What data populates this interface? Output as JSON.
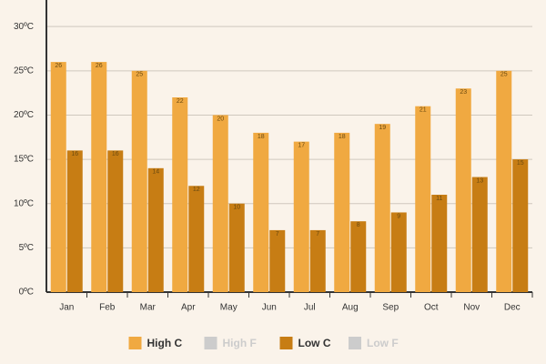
{
  "chart_data": {
    "type": "bar",
    "categories": [
      "Jan",
      "Feb",
      "Mar",
      "Apr",
      "May",
      "Jun",
      "Jul",
      "Aug",
      "Sep",
      "Oct",
      "Nov",
      "Dec"
    ],
    "series": [
      {
        "name": "High C",
        "color": "#f0a941",
        "values": [
          26,
          26,
          25,
          22,
          20,
          18,
          17,
          18,
          19,
          21,
          23,
          25
        ]
      },
      {
        "name": "High F",
        "color": "#cccccc",
        "visible": false
      },
      {
        "name": "Low C",
        "color": "#c77d14",
        "values": [
          16,
          16,
          14,
          12,
          10,
          7,
          7,
          8,
          9,
          11,
          13,
          15
        ]
      },
      {
        "name": "Low F",
        "color": "#cccccc",
        "visible": false
      }
    ],
    "ylim": [
      0,
      33
    ],
    "yticks": [
      {
        "value": 0,
        "label": "0ºC"
      },
      {
        "value": 5,
        "label": "5ºC"
      },
      {
        "value": 10,
        "label": "10ºC"
      },
      {
        "value": 15,
        "label": "15ºC"
      },
      {
        "value": 20,
        "label": "20ºC"
      },
      {
        "value": 25,
        "label": "25ºC"
      },
      {
        "value": 30,
        "label": "30ºC"
      }
    ],
    "grid": true,
    "legend": "bottom"
  }
}
